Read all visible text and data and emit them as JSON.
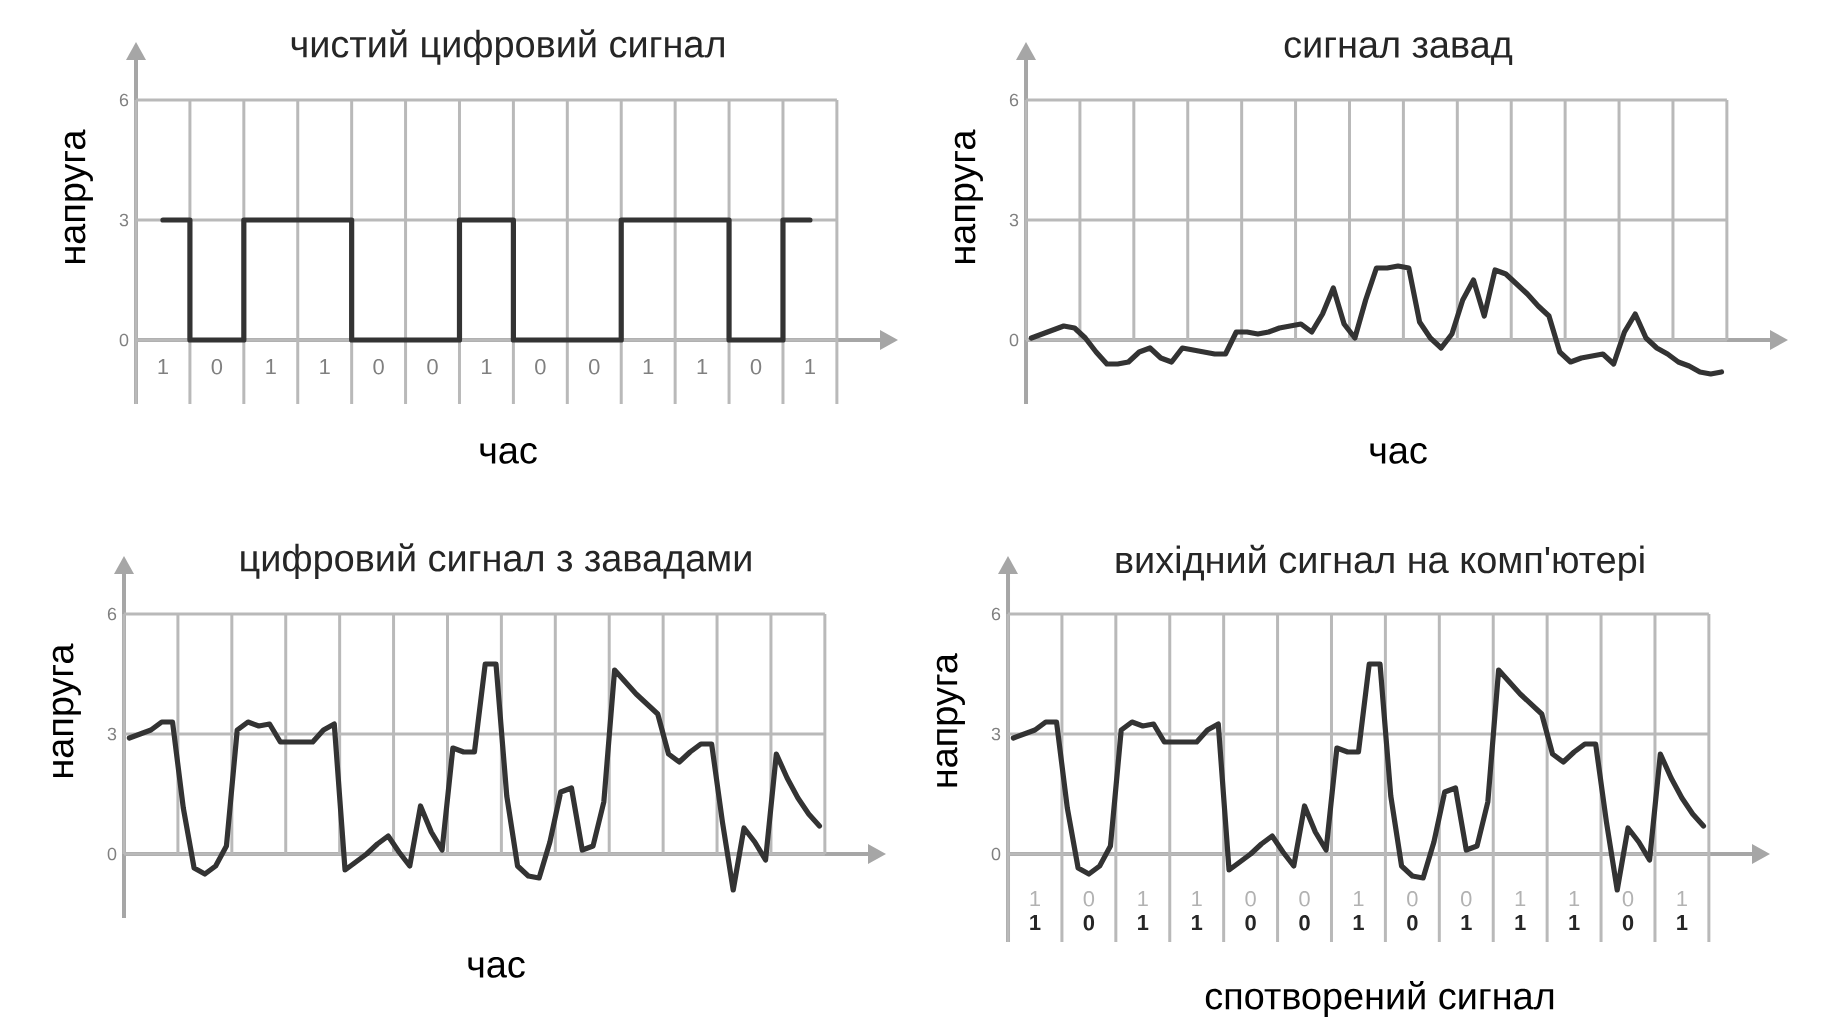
{
  "chart_data": [
    {
      "type": "step",
      "title": "чистий цифровий сигнал",
      "xlabel": "час",
      "ylabel": "напруга",
      "color": "#333333",
      "grid": true,
      "ylim": [
        -1.6,
        7
      ],
      "yticks": [
        0,
        3,
        6
      ],
      "categories": [
        "1",
        "0",
        "1",
        "1",
        "0",
        "0",
        "1",
        "0",
        "0",
        "1",
        "1",
        "0",
        "1"
      ],
      "values": [
        3,
        0,
        3,
        3,
        0,
        0,
        3,
        0,
        0,
        3,
        3,
        0,
        3
      ]
    },
    {
      "type": "line",
      "title": "сигнал завад",
      "xlabel": "час",
      "ylabel": "напруга",
      "color": "#333333",
      "grid": true,
      "ylim": [
        -1.6,
        7
      ],
      "yticks": [
        0,
        3,
        6
      ],
      "categories": [
        null,
        null,
        null,
        null,
        null,
        null,
        null,
        null,
        null,
        null,
        null,
        null,
        null,
        null,
        null,
        null,
        null,
        null,
        null,
        null,
        null,
        null,
        null,
        null,
        null,
        null,
        null,
        null,
        null,
        null,
        null,
        null,
        null,
        null,
        null,
        null,
        null,
        null,
        null,
        null,
        null,
        null,
        null,
        null,
        null,
        null,
        null,
        null,
        null,
        null,
        null,
        null,
        null,
        null,
        null,
        null,
        null,
        null,
        null,
        null,
        null,
        null,
        null,
        null,
        null
      ],
      "values": [
        0.05,
        0.15,
        0.25,
        0.35,
        0.3,
        0.05,
        -0.3,
        -0.6,
        -0.6,
        -0.55,
        -0.3,
        -0.2,
        -0.45,
        -0.55,
        -0.2,
        -0.25,
        -0.3,
        -0.35,
        -0.35,
        0.2,
        0.2,
        0.15,
        0.2,
        0.3,
        0.35,
        0.4,
        0.2,
        0.65,
        1.3,
        0.4,
        0.05,
        1.0,
        1.8,
        1.8,
        1.85,
        1.8,
        0.45,
        0.05,
        -0.2,
        0.15,
        1.0,
        1.5,
        0.6,
        1.75,
        1.65,
        1.4,
        1.15,
        0.85,
        0.6,
        -0.3,
        -0.55,
        -0.45,
        -0.4,
        -0.35,
        -0.6,
        0.2,
        0.65,
        0.05,
        -0.2,
        -0.35,
        -0.55,
        -0.65,
        -0.8,
        -0.85,
        -0.8
      ]
    },
    {
      "type": "line",
      "title": "цифровий сигнал з завадами",
      "xlabel": "час",
      "ylabel": "напруга",
      "color": "#333333",
      "grid": true,
      "ylim": [
        -1.6,
        7
      ],
      "yticks": [
        0,
        3,
        6
      ],
      "categories": [
        null,
        null,
        null,
        null,
        null,
        null,
        null,
        null,
        null,
        null,
        null,
        null,
        null,
        null,
        null,
        null,
        null,
        null,
        null,
        null,
        null,
        null,
        null,
        null,
        null,
        null,
        null,
        null,
        null,
        null,
        null,
        null,
        null,
        null,
        null,
        null,
        null,
        null,
        null,
        null,
        null,
        null,
        null,
        null,
        null,
        null,
        null,
        null,
        null,
        null,
        null,
        null,
        null,
        null,
        null,
        null,
        null,
        null,
        null,
        null,
        null,
        null,
        null,
        null,
        null
      ],
      "values": [
        2.9,
        3.0,
        3.1,
        3.3,
        3.3,
        1.15,
        -0.35,
        -0.5,
        -0.3,
        0.2,
        3.1,
        3.3,
        3.2,
        3.25,
        2.8,
        2.8,
        2.8,
        2.8,
        3.1,
        3.25,
        -0.4,
        -0.2,
        0,
        0.25,
        0.45,
        0.05,
        -0.3,
        1.2,
        0.55,
        0.1,
        2.65,
        2.55,
        2.55,
        4.75,
        4.75,
        1.45,
        -0.3,
        -0.55,
        -0.6,
        0.3,
        1.55,
        1.65,
        0.1,
        0.2,
        1.3,
        4.6,
        4.3,
        4.0,
        3.75,
        3.5,
        2.5,
        2.3,
        2.55,
        2.75,
        2.75,
        0.8,
        -0.9,
        0.65,
        0.3,
        -0.15,
        2.5,
        1.9,
        1.4,
        1.0,
        0.7
      ]
    },
    {
      "type": "line",
      "title": "вихідний сигнал на комп'ютері",
      "xlabel": "спотворений сигнал",
      "ylabel": "напруга",
      "color": "#333333",
      "grid": true,
      "ylim": [
        -2.2,
        7
      ],
      "yticks": [
        0,
        3,
        6
      ],
      "categories": [
        null,
        null,
        "1",
        null,
        null,
        null,
        null,
        "0",
        null,
        null,
        null,
        null,
        "1",
        null,
        null,
        null,
        null,
        "1",
        null,
        null,
        null,
        null,
        "0",
        null,
        null,
        null,
        null,
        "0",
        null,
        null,
        null,
        null,
        "1",
        null,
        null,
        null,
        null,
        "0",
        null,
        null,
        null,
        null,
        "1",
        null,
        null,
        null,
        null,
        "1",
        null,
        null,
        null,
        null,
        "1",
        null,
        null,
        null,
        null,
        "0",
        null,
        null,
        null,
        null,
        "1",
        null,
        null
      ],
      "annotations": [
        "1",
        "0",
        "1",
        "1",
        "0",
        "0",
        "1",
        "0",
        "0",
        "1",
        "1",
        "0",
        "1"
      ],
      "values": [
        2.9,
        3.0,
        3.1,
        3.3,
        3.3,
        1.15,
        -0.35,
        -0.5,
        -0.3,
        0.2,
        3.1,
        3.3,
        3.2,
        3.25,
        2.8,
        2.8,
        2.8,
        2.8,
        3.1,
        3.25,
        -0.4,
        -0.2,
        0,
        0.25,
        0.45,
        0.05,
        -0.3,
        1.2,
        0.55,
        0.1,
        2.65,
        2.55,
        2.55,
        4.75,
        4.75,
        1.45,
        -0.3,
        -0.55,
        -0.6,
        0.3,
        1.55,
        1.65,
        0.1,
        0.2,
        1.3,
        4.6,
        4.3,
        4.0,
        3.75,
        3.5,
        2.5,
        2.3,
        2.55,
        2.75,
        2.75,
        0.8,
        -0.9,
        0.65,
        0.3,
        -0.15,
        2.5,
        1.9,
        1.4,
        1.0,
        0.7
      ]
    }
  ]
}
